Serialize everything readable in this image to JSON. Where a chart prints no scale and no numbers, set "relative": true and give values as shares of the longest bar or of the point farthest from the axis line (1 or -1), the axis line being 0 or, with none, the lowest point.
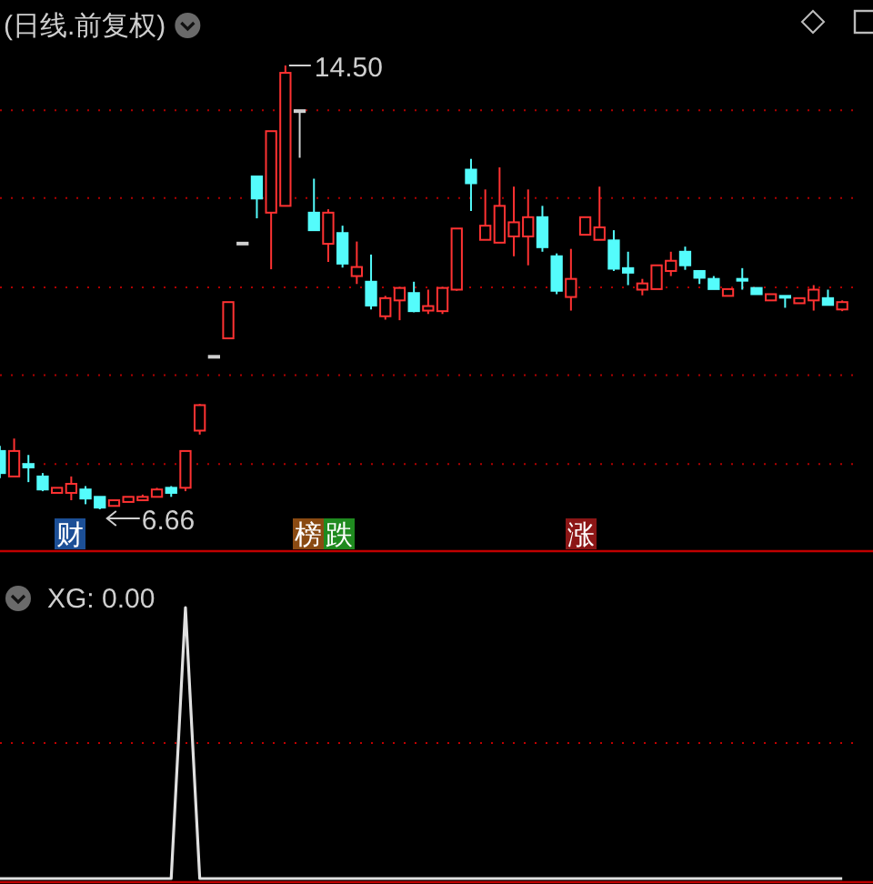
{
  "chart_data": [
    {
      "type": "candlestick",
      "title": "(日线.前复权)",
      "categories": [
        null,
        null,
        null,
        null,
        null,
        null,
        null,
        null,
        null,
        null,
        null,
        null,
        null,
        null,
        null,
        null,
        null,
        null,
        null,
        null,
        null,
        null,
        null,
        null,
        null,
        null,
        null,
        null,
        null,
        null,
        null,
        null,
        null,
        null,
        null,
        null,
        null,
        null,
        null,
        null,
        null,
        null,
        null,
        null,
        null,
        null,
        null,
        null,
        null,
        null,
        null,
        null,
        null,
        null,
        null,
        null,
        null,
        null,
        null,
        null
      ],
      "ohlc": [
        [
          7.69,
          7.78,
          7.21,
          7.3
        ],
        [
          7.24,
          7.91,
          7.24,
          7.69
        ],
        [
          7.46,
          7.62,
          7.14,
          7.4
        ],
        [
          7.24,
          7.3,
          6.98,
          7.01
        ],
        [
          6.95,
          7.04,
          6.95,
          7.04
        ],
        [
          6.95,
          7.24,
          6.82,
          7.11
        ],
        [
          7.01,
          7.07,
          6.75,
          6.85
        ],
        [
          6.88,
          6.88,
          6.66,
          6.69
        ],
        [
          6.72,
          6.82,
          6.72,
          6.82
        ],
        [
          6.79,
          6.88,
          6.79,
          6.88
        ],
        [
          6.82,
          6.92,
          6.82,
          6.88
        ],
        [
          6.88,
          7.04,
          6.88,
          7.01
        ],
        [
          7.04,
          7.07,
          6.88,
          6.95
        ],
        [
          7.04,
          7.69,
          6.98,
          7.69
        ],
        [
          8.05,
          8.52,
          7.98,
          8.5
        ],
        [
          9.37,
          9.37,
          9.37,
          9.37
        ],
        [
          9.68,
          10.32,
          9.68,
          10.32
        ],
        [
          11.37,
          11.37,
          11.37,
          11.37
        ],
        [
          12.54,
          12.54,
          11.8,
          12.15
        ],
        [
          11.9,
          13.34,
          10.9,
          13.34
        ],
        [
          12.02,
          14.5,
          12.02,
          14.37
        ],
        [
          13.71,
          13.71,
          12.87,
          13.71
        ],
        [
          11.9,
          12.5,
          11.59,
          11.59
        ],
        [
          11.35,
          11.96,
          11.03,
          11.9
        ],
        [
          11.54,
          11.67,
          10.93,
          11.0
        ],
        [
          10.78,
          11.39,
          10.64,
          10.94
        ],
        [
          10.68,
          11.16,
          10.19,
          10.26
        ],
        [
          10.07,
          10.43,
          10.01,
          10.39
        ],
        [
          10.35,
          10.59,
          10.0,
          10.57
        ],
        [
          10.48,
          10.68,
          10.14,
          10.16
        ],
        [
          10.17,
          10.54,
          10.11,
          10.25
        ],
        [
          10.16,
          10.59,
          10.11,
          10.57
        ],
        [
          10.54,
          11.62,
          10.52,
          11.62
        ],
        [
          12.66,
          12.85,
          11.93,
          12.42
        ],
        [
          11.42,
          12.31,
          11.42,
          11.67
        ],
        [
          11.37,
          12.7,
          11.37,
          12.02
        ],
        [
          11.48,
          12.36,
          11.13,
          11.73
        ],
        [
          11.48,
          12.31,
          10.97,
          11.82
        ],
        [
          11.82,
          12.02,
          11.21,
          11.29
        ],
        [
          11.13,
          11.18,
          10.46,
          10.52
        ],
        [
          10.41,
          11.26,
          10.17,
          10.73
        ],
        [
          11.51,
          11.82,
          11.51,
          11.82
        ],
        [
          11.42,
          12.36,
          11.42,
          11.64
        ],
        [
          11.41,
          11.59,
          10.87,
          10.91
        ],
        [
          10.92,
          11.21,
          10.62,
          10.84
        ],
        [
          10.54,
          10.73,
          10.44,
          10.65
        ],
        [
          10.55,
          10.97,
          10.55,
          10.97
        ],
        [
          10.87,
          11.21,
          10.78,
          11.05
        ],
        [
          11.21,
          11.3,
          10.89,
          10.97
        ],
        [
          10.87,
          10.87,
          10.64,
          10.75
        ],
        [
          10.73,
          10.78,
          10.55,
          10.55
        ],
        [
          10.43,
          10.55,
          10.43,
          10.55
        ],
        [
          10.73,
          10.92,
          10.54,
          10.7
        ],
        [
          10.57,
          10.57,
          10.46,
          10.46
        ],
        [
          10.35,
          10.46,
          10.35,
          10.46
        ],
        [
          10.43,
          10.43,
          10.22,
          10.41
        ],
        [
          10.3,
          10.39,
          10.3,
          10.39
        ],
        [
          10.35,
          10.62,
          10.17,
          10.54
        ],
        [
          10.39,
          10.54,
          10.27,
          10.27
        ],
        [
          10.19,
          10.35,
          10.16,
          10.32
        ]
      ],
      "colors": [
        "#54fcfc",
        "#ff3232",
        "#54fcfc",
        "#54fcfc",
        "#ff3232",
        "#ff3232",
        "#54fcfc",
        "#54fcfc",
        "#ff3232",
        "#ff3232",
        "#ff3232",
        "#ff3232",
        "#54fcfc",
        "#ff3232",
        "#ff3232",
        "#d0d0d0",
        "#ff3232",
        "#d0d0d0",
        "#54fcfc",
        "#ff3232",
        "#ff3232",
        "#d0d0d0",
        "#54fcfc",
        "#ff3232",
        "#54fcfc",
        "#ff3232",
        "#54fcfc",
        "#ff3232",
        "#ff3232",
        "#54fcfc",
        "#ff3232",
        "#ff3232",
        "#ff3232",
        "#54fcfc",
        "#ff3232",
        "#ff3232",
        "#ff3232",
        "#ff3232",
        "#54fcfc",
        "#54fcfc",
        "#ff3232",
        "#ff3232",
        "#ff3232",
        "#54fcfc",
        "#54fcfc",
        "#ff3232",
        "#ff3232",
        "#ff3232",
        "#54fcfc",
        "#54fcfc",
        "#54fcfc",
        "#ff3232",
        "#54fcfc",
        "#54fcfc",
        "#ff3232",
        "#54fcfc",
        "#ff3232",
        "#ff3232",
        "#54fcfc",
        "#ff3232"
      ],
      "yticks": [
        {
          "value": 7.46,
          "label": null
        },
        {
          "value": 9.03,
          "label": null
        },
        {
          "value": 10.58,
          "label": null
        },
        {
          "value": 12.16,
          "label": null
        },
        {
          "value": 13.71,
          "label": null
        }
      ],
      "grid": "y",
      "annotations": [
        "14.50",
        "6.66",
        "财",
        "榜",
        "跌",
        "涨"
      ]
    },
    {
      "type": "line",
      "title": "XG: 0.00",
      "categories": [
        null,
        null,
        null,
        null,
        null,
        null,
        null,
        null,
        null,
        null,
        null,
        null,
        null,
        null,
        null,
        null,
        null,
        null,
        null,
        null,
        null,
        null,
        null,
        null,
        null,
        null,
        null,
        null,
        null,
        null,
        null,
        null,
        null,
        null,
        null,
        null,
        null,
        null,
        null,
        null,
        null,
        null,
        null,
        null,
        null,
        null,
        null,
        null,
        null,
        null,
        null,
        null,
        null,
        null,
        null,
        null,
        null,
        null,
        null,
        null
      ],
      "series": [
        {
          "color": "#e0e0e0",
          "values": [
            0,
            0,
            0,
            0,
            0,
            0,
            0,
            0,
            0,
            0,
            0,
            0,
            0,
            1,
            0,
            0,
            0,
            0,
            0,
            0,
            0,
            0,
            0,
            0,
            0,
            0,
            0,
            0,
            0,
            0,
            0,
            0,
            0,
            0,
            0,
            0,
            0,
            0,
            0,
            0,
            0,
            0,
            0,
            0,
            0,
            0,
            0,
            0,
            0,
            0,
            0,
            0,
            0,
            0,
            0,
            0,
            0,
            0,
            0,
            0
          ]
        }
      ],
      "relative": true,
      "ref_lines": [
        {
          "axis": "y",
          "value": 0.5,
          "color": "#c00000",
          "line_style": "dotted"
        }
      ]
    }
  ]
}
